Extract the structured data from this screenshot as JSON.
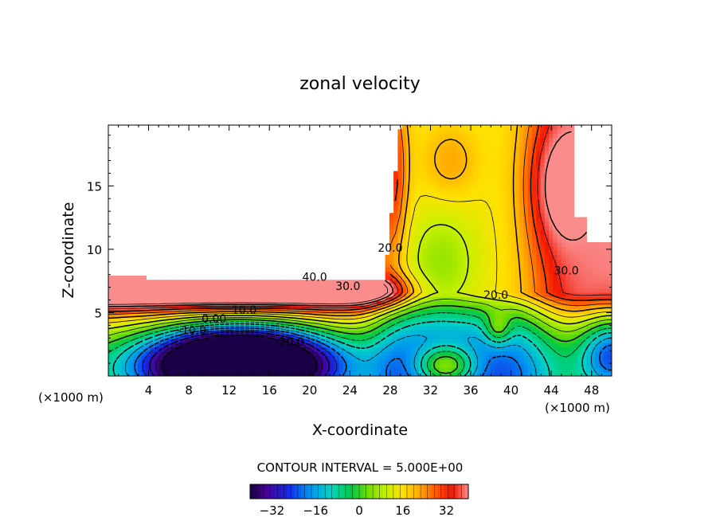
{
  "chart_data": {
    "type": "contour",
    "title": "zonal velocity",
    "xlabel": "X-coordinate",
    "ylabel": "Z-coordinate",
    "x_unit_label": "(×1000 m)",
    "xlim": [
      0,
      50
    ],
    "ylim": [
      0,
      19.8
    ],
    "xticks": [
      4,
      8,
      12,
      16,
      20,
      24,
      28,
      32,
      36,
      40,
      44,
      48
    ],
    "yticks": [
      5,
      10,
      15
    ],
    "contour_interval_text": "CONTOUR INTERVAL = 5.000E+00",
    "contour_interval": 5,
    "contour_labels": [
      {
        "text": "40.0",
        "x": 20.5,
        "y": 7.5
      },
      {
        "text": "30.0",
        "x": 23.8,
        "y": 6.8
      },
      {
        "text": "20.0",
        "x": 28.0,
        "y": 9.8
      },
      {
        "text": "30.0",
        "x": 45.5,
        "y": 8.0
      },
      {
        "text": "20.0",
        "x": 38.5,
        "y": 6.1
      },
      {
        "text": "10.0",
        "x": 13.5,
        "y": 4.9
      },
      {
        "text": "0.00",
        "x": 10.5,
        "y": 4.2
      },
      {
        "text": "-10.0",
        "x": 8.3,
        "y": 3.3
      },
      {
        "text": "-20.0",
        "x": 18.0,
        "y": 2.4
      }
    ],
    "colorbar": {
      "min": -40,
      "max": 40,
      "tick_values": [
        -32,
        -16,
        0,
        16,
        32
      ],
      "tick_labels": [
        "−32",
        "−16",
        "0",
        "16",
        "32"
      ]
    }
  }
}
